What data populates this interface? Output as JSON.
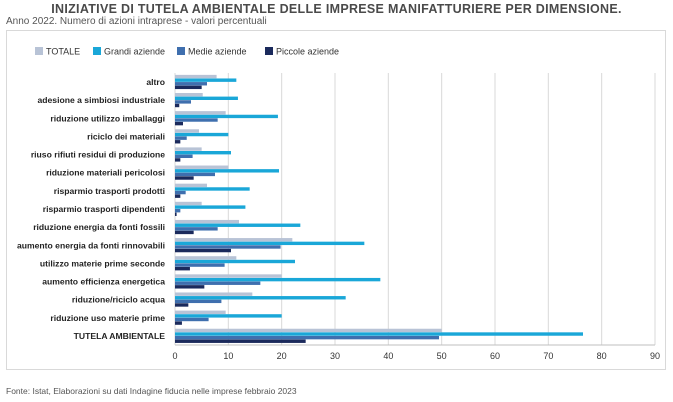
{
  "header": {
    "title": "INIZIATIVE DI TUTELA AMBIENTALE DELLE IMPRESE MANIFATTURIERE PER DIMENSIONE.",
    "subtitle": "Anno 2022. Numero di azioni intraprese - valori percentuali"
  },
  "footer": {
    "source": "Fonte: Istat, Elaborazioni su dati Indagine fiducia nelle imprese febbraio 2023"
  },
  "colors": {
    "totale": "#b8c3d6",
    "grandi": "#1aa7d8",
    "medie": "#3f6fae",
    "piccole": "#1b2a5c",
    "grid": "#d9d9d9"
  },
  "chart_data": {
    "type": "bar",
    "orientation": "horizontal",
    "title": "",
    "xlabel": "",
    "ylabel": "",
    "xlim": [
      0,
      90
    ],
    "xticks": [
      0,
      10,
      20,
      30,
      40,
      50,
      60,
      70,
      80,
      90
    ],
    "grid": "vertical",
    "legend_position": "top",
    "categories": [
      "altro",
      "adesione a simbiosi industriale",
      "riduzione utilizzo imballaggi",
      "riciclo dei materiali",
      "riuso rifiuti residui di produzione",
      "riduzione materiali pericolosi",
      "risparmio trasporti prodotti",
      "risparmio trasporti dipendenti",
      "riduzione energia da fonti fossili",
      "aumento  energia da fonti rinnovabili",
      "utilizzo materie prime seconde",
      "aumento efficienza energetica",
      "riduzione/riciclo acqua",
      "riduzione uso materie prime",
      "TUTELA AMBIENTALE"
    ],
    "series": [
      {
        "name": "TOTALE",
        "values": [
          7.8,
          5.2,
          9.5,
          4.5,
          5.0,
          10.0,
          6.0,
          5.0,
          12.0,
          22.0,
          11.5,
          20.0,
          14.5,
          9.5,
          50.0
        ]
      },
      {
        "name": "Grandi aziende",
        "values": [
          11.5,
          11.8,
          19.3,
          10.0,
          10.5,
          19.5,
          14.0,
          13.2,
          23.5,
          35.5,
          22.5,
          38.5,
          32.0,
          20.0,
          76.5
        ]
      },
      {
        "name": "Medie aziende",
        "values": [
          6.0,
          3.0,
          8.0,
          2.2,
          3.3,
          7.5,
          2.0,
          1.0,
          8.0,
          19.8,
          9.3,
          16.0,
          8.7,
          6.3,
          49.5
        ]
      },
      {
        "name": "Piccole aziende",
        "values": [
          5.0,
          0.8,
          1.5,
          1.0,
          1.0,
          3.5,
          1.0,
          0.3,
          3.5,
          10.5,
          2.8,
          5.5,
          2.5,
          1.3,
          24.5
        ]
      }
    ]
  }
}
